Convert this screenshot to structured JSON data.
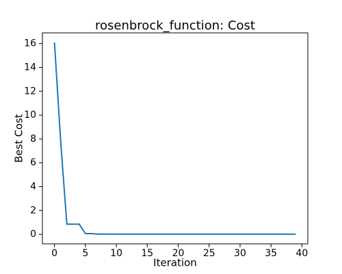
{
  "chart_data": {
    "type": "line",
    "title": "rosenbrock_function: Cost",
    "x_label": "Iteration",
    "y_label": "Best Cost",
    "x": [
      0,
      1,
      2,
      3,
      4,
      5,
      6,
      7,
      8,
      9,
      10,
      11,
      12,
      13,
      14,
      15,
      16,
      17,
      18,
      19,
      20,
      21,
      22,
      23,
      24,
      25,
      26,
      27,
      28,
      29,
      30,
      31,
      32,
      33,
      34,
      35,
      36,
      37,
      38,
      39
    ],
    "series": [
      {
        "name": "Best Cost",
        "color": "#1f77b4",
        "values": [
          16.1,
          7.8,
          0.85,
          0.85,
          0.85,
          0.06,
          0.06,
          0.02,
          0.02,
          0.02,
          0.02,
          0.015,
          0.015,
          0.01,
          0.01,
          0.01,
          0.01,
          0.01,
          0.01,
          0.01,
          0.01,
          0.01,
          0.01,
          0.01,
          0.01,
          0.01,
          0.01,
          0.01,
          0.01,
          0.01,
          0.01,
          0.01,
          0.01,
          0.01,
          0.01,
          0.01,
          0.01,
          0.01,
          0.01,
          0.01
        ]
      }
    ],
    "xlim": [
      -1.95,
      40.95
    ],
    "xticks": [
      0,
      5,
      10,
      15,
      20,
      25,
      30,
      35,
      40
    ],
    "ylim": [
      -0.8,
      16.9
    ],
    "yticks": [
      0,
      2,
      4,
      6,
      8,
      10,
      12,
      14,
      16
    ],
    "grid": false
  }
}
